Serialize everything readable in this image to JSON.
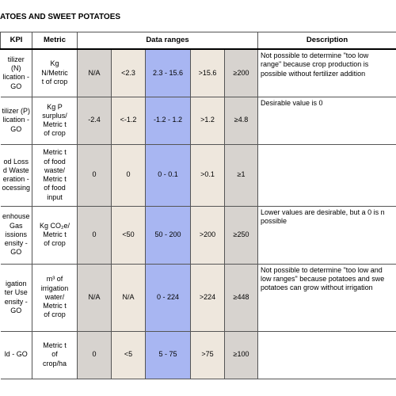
{
  "header": {
    "title": "ATOES AND SWEET POTATOES"
  },
  "table": {
    "columns": [
      "KPI",
      "Metric",
      "Data ranges",
      "Description"
    ],
    "rows": [
      {
        "kpi": "tilizer (N)\nlication -\nGO",
        "metric": "Kg\nN/Metric\nt of crop",
        "ranges": [
          "N/A",
          "<2.3",
          "2.3 - 15.6",
          ">15.6",
          "≥200"
        ],
        "description": "Not possible to determine \"too low\nrange\" because crop production is\npossible without fertilizer addition"
      },
      {
        "kpi": "tilizer (P)\nlication -\nGO",
        "metric": "Kg P\nsurplus/\nMetric t\nof crop",
        "ranges": [
          "-2.4",
          "<-1.2",
          "-1.2 - 1.2",
          ">1.2",
          "≥4.8"
        ],
        "description": "Desirable value is 0"
      },
      {
        "kpi": "od Loss\nd Waste\neration -\nocessing",
        "metric": "Metric t\nof food\nwaste/\nMetric t\nof food\ninput",
        "ranges": [
          "0",
          "0",
          "0 - 0.1",
          ">0.1",
          "≥1"
        ]
      },
      {
        "kpi": "enhouse\nGas\nissions\nensity -\nGO",
        "metric": "Kg CO₂e/\nMetric t\nof crop",
        "ranges": [
          "0",
          "<50",
          "50 - 200",
          ">200",
          "≥250"
        ],
        "description": "Lower values are desirable, but a 0 is n\npossible"
      },
      {
        "kpi": "igation\nter Use\nensity -\nGO",
        "metric": "m³ of\nirrigation\nwater/\nMetric t\nof crop",
        "ranges": [
          "N/A",
          "N/A",
          "0 - 224",
          ">224",
          "≥448"
        ],
        "description": "Not possible to determine \"too low and\nlow ranges\" because potatoes and swe\npotatoes can grow without irrigation"
      },
      {
        "kpi": "ld - GO",
        "metric": "Metric t\nof\ncrop/ha",
        "ranges": [
          "0",
          "<5",
          "5 - 75",
          ">75",
          "≥100"
        ]
      }
    ]
  }
}
